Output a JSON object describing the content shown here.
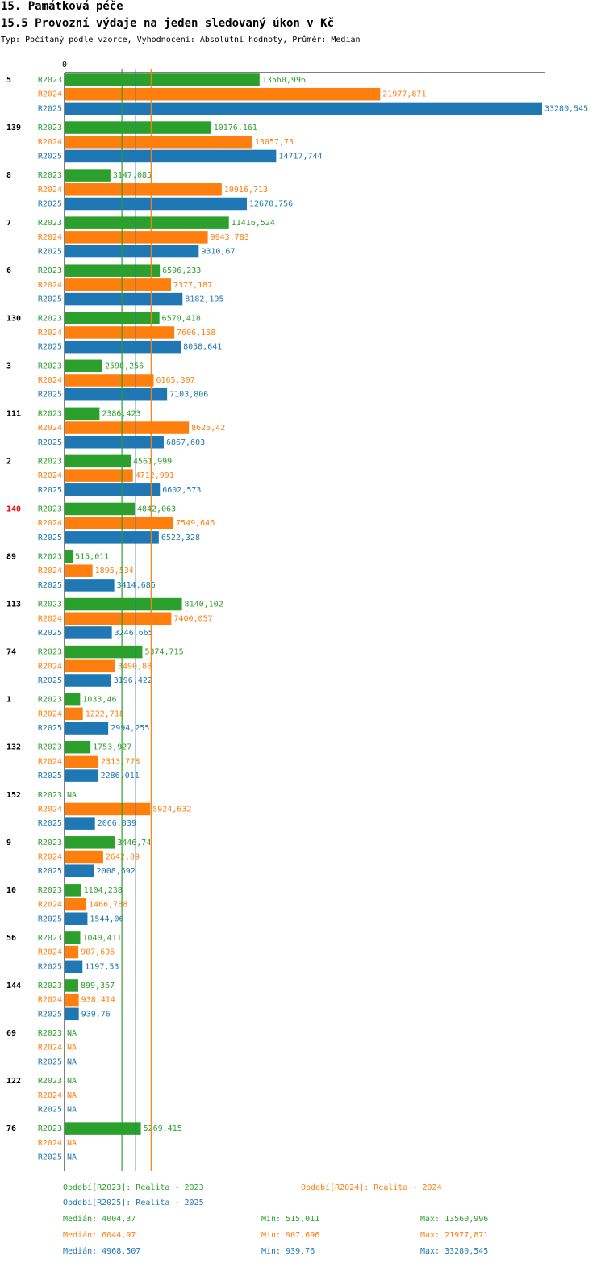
{
  "header": {
    "title": "15. Památková péče",
    "subtitle": "15.5 Provozní výdaje na jeden sledovaný úkon v Kč",
    "type_line": "Typ: Počítaný podle vzorce, Vyhodnocení: Absolutní hodnoty, Průměr: Medián"
  },
  "colors": {
    "R2023": "#2ca02c",
    "R2024": "#ff7f0e",
    "R2025": "#1f77b4",
    "highlight": "#ff0000"
  },
  "chart_data": {
    "type": "bar",
    "orientation": "horizontal",
    "axis_zero_label": "0",
    "xlim": [
      0,
      33280.545
    ],
    "series_names": [
      "R2023",
      "R2024",
      "R2025"
    ],
    "categories": [
      "5",
      "139",
      "8",
      "7",
      "6",
      "130",
      "3",
      "111",
      "2",
      "140",
      "89",
      "113",
      "74",
      "1",
      "132",
      "152",
      "9",
      "10",
      "56",
      "144",
      "69",
      "122",
      "76"
    ],
    "highlighted_category": "140",
    "values": {
      "R2023": [
        13560.996,
        10176.161,
        3147.085,
        11416.524,
        6596.233,
        6570.418,
        2590.256,
        2386.423,
        4561.999,
        4842.063,
        515.011,
        8140.102,
        5374.715,
        1033.46,
        1753.927,
        null,
        3446.74,
        1104.238,
        1040.411,
        899.367,
        null,
        null,
        5269.415
      ],
      "R2024": [
        21977.871,
        13057.73,
        10916.713,
        9943.783,
        7377.187,
        7606.158,
        6165.307,
        8625.42,
        4712.991,
        7549.646,
        1895.534,
        7400.057,
        3490.88,
        1222.718,
        2313.778,
        5924.632,
        2642.09,
        1466.788,
        907.696,
        938.414,
        null,
        null,
        null
      ],
      "R2025": [
        33280.545,
        14717.744,
        12670.756,
        9310.67,
        8182.195,
        8058.641,
        7103.806,
        6867.603,
        6602.573,
        6522.328,
        3414.686,
        3246.665,
        3196.422,
        2994.255,
        2286.011,
        2066.839,
        2008.692,
        1544.06,
        1197.53,
        939.76,
        null,
        null,
        null
      ]
    },
    "value_labels": {
      "R2023": [
        "13560,996",
        "10176,161",
        "3147,085",
        "11416,524",
        "6596,233",
        "6570,418",
        "2590,256",
        "2386,423",
        "4561,999",
        "4842,063",
        "515,011",
        "8140,102",
        "5374,715",
        "1033,46",
        "1753,927",
        "NA",
        "3446,74",
        "1104,238",
        "1040,411",
        "899,367",
        "NA",
        "NA",
        "5269,415"
      ],
      "R2024": [
        "21977,871",
        "13057,73",
        "10916,713",
        "9943,783",
        "7377,187",
        "7606,158",
        "6165,307",
        "8625,42",
        "4712,991",
        "7549,646",
        "1895,534",
        "7400,057",
        "3490,88",
        "1222,718",
        "2313,778",
        "5924,632",
        "2642,09",
        "1466,788",
        "907,696",
        "938,414",
        "NA",
        "NA",
        "NA"
      ],
      "R2025": [
        "33280,545",
        "14717,744",
        "12670,756",
        "9310,67",
        "8182,195",
        "8058,641",
        "7103,806",
        "6867,603",
        "6602,573",
        "6522,328",
        "3414,686",
        "3246,665",
        "3196,422",
        "2994,255",
        "2286,011",
        "2066,839",
        "2008,692",
        "1544,06",
        "1197,53",
        "939,76",
        "NA",
        "NA",
        "NA"
      ]
    },
    "medians": {
      "R2023": 4004.37,
      "R2024": 6044.97,
      "R2025": 4968.507
    }
  },
  "legend": {
    "r2023": "Období[R2023]: Realita - 2023",
    "r2024": "Období[R2024]: Realita - 2024",
    "r2025": "Období[R2025]: Realita - 2025",
    "stats": [
      {
        "median": "Medián: 4004,37",
        "min": "Min: 515,011",
        "max": "Max: 13560,996"
      },
      {
        "median": "Medián: 6044,97",
        "min": "Min: 907,696",
        "max": "Max: 21977,871"
      },
      {
        "median": "Medián: 4968,507",
        "min": "Min: 939,76",
        "max": "Max: 33280,545"
      }
    ]
  }
}
